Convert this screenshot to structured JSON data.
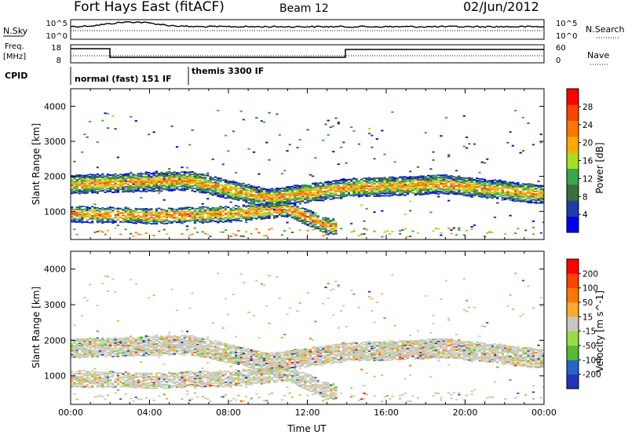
{
  "header": {
    "title": "Fort Hays East (fitACF)",
    "beam": "Beam 12",
    "date": "02/Jun/2012"
  },
  "strips": {
    "nsky_label": "N.Sky",
    "nsky_ticks": [
      "10^5",
      "10^0"
    ],
    "nsearch_label": "N.Search",
    "nsearch_ticks": [
      "10^5",
      "10^0"
    ],
    "freq_label_top": "Freq.",
    "freq_label_unit": "[MHz]",
    "freq_ticks": [
      "18",
      "8"
    ],
    "nave_label": "Nave",
    "nave_ticks": [
      "60",
      "0"
    ],
    "cpid_label": "CPID",
    "cpid_segments": [
      {
        "name": "normal (fast) 151 IF",
        "start_hour": 0,
        "end_hour": 6
      },
      {
        "name": "themis 3300 IF",
        "start_hour": 6,
        "end_hour": 24
      }
    ]
  },
  "colors": {
    "power": [
      "#0000ee",
      "#1a3ea6",
      "#3a6e3a",
      "#3aa64a",
      "#aadd22",
      "#ffaa00",
      "#ff7700",
      "#ff4400",
      "#ff0000"
    ],
    "velocity": [
      "#2233bb",
      "#2266cc",
      "#55bb33",
      "#99dd44",
      "#c8c8c0",
      "#ffaa33",
      "#ff7700",
      "#ff4400",
      "#ff0000"
    ]
  },
  "chart_data": [
    {
      "type": "heatmap",
      "ylabel": "Slant Range [km]",
      "xlabel": "",
      "x_range_hours": [
        0,
        24
      ],
      "y_range_km": [
        200,
        4500
      ],
      "y_ticks": [
        "1000",
        "2000",
        "3000",
        "4000"
      ],
      "x_ticks": [],
      "colorbar": {
        "label": "Power [dB]",
        "ticks": [
          "28",
          "24",
          "20",
          "16",
          "12",
          "8",
          "4"
        ],
        "range": [
          0,
          30
        ]
      },
      "echo_bands": [
        {
          "time_hours": [
            0,
            6,
            10,
            14,
            19,
            24
          ],
          "range_km": [
            1800,
            1900,
            1400,
            1700,
            1800,
            1500
          ],
          "power_db": 22
        },
        {
          "time_hours": [
            0,
            4,
            8,
            11,
            13
          ],
          "range_km": [
            950,
            900,
            950,
            1100,
            600
          ],
          "power_db": 24
        }
      ]
    },
    {
      "type": "heatmap",
      "ylabel": "Slant Range [km]",
      "xlabel": "Time UT",
      "x_range_hours": [
        0,
        24
      ],
      "y_range_km": [
        200,
        4500
      ],
      "y_ticks": [
        "1000",
        "2000",
        "3000",
        "4000"
      ],
      "x_ticks": [
        "00:00",
        "04:00",
        "08:00",
        "12:00",
        "16:00",
        "20:00",
        "00:00"
      ],
      "colorbar": {
        "label": "Velocity [m s^-1]",
        "ticks": [
          "200",
          "100",
          "50",
          "15",
          "-15",
          "-50",
          "-100",
          "-200"
        ],
        "range": [
          -250,
          250
        ]
      }
    }
  ]
}
